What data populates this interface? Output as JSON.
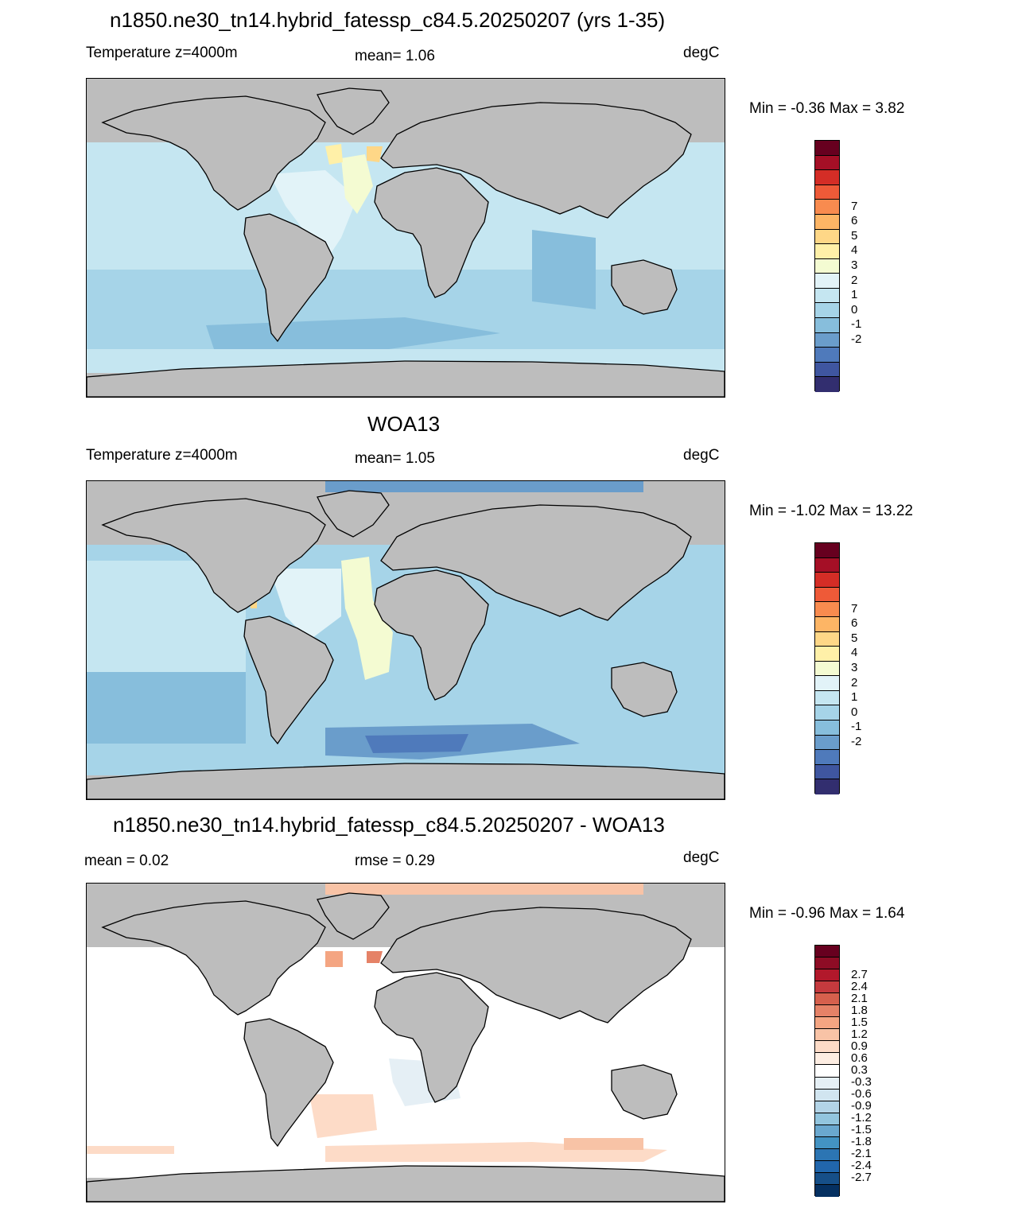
{
  "panels": [
    {
      "title": "n1850.ne30_tn14.hybrid_fatessp_c84.5.20250207 (yrs 1-35)",
      "left_label": "Temperature z=4000m",
      "center_label": "mean=   1.06",
      "units": "degC",
      "minmax": "Min =  -0.36 Max =   3.82",
      "colorbar": {
        "labels": [
          "7",
          "6",
          "5",
          "4",
          "3",
          "2",
          "1",
          "0",
          "-1",
          "-2"
        ],
        "colors": [
          "#67001f",
          "#a50f26",
          "#d42d26",
          "#ee5a38",
          "#f88b4f",
          "#fdb565",
          "#fed787",
          "#fff0a8",
          "#f4fbd2",
          "#e2f3f8",
          "#c5e6f1",
          "#a6d4e8",
          "#87bedc",
          "#6a9dcb",
          "#4f7abb",
          "#3f56a0",
          "#322e6f"
        ]
      },
      "field": "temp_model"
    },
    {
      "title": "WOA13",
      "left_label": "Temperature z=4000m",
      "center_label": "mean=   1.05",
      "units": "degC",
      "minmax": "Min =  -1.02 Max =  13.22",
      "colorbar": {
        "labels": [
          "7",
          "6",
          "5",
          "4",
          "3",
          "2",
          "1",
          "0",
          "-1",
          "-2"
        ],
        "colors": [
          "#67001f",
          "#a50f26",
          "#d42d26",
          "#ee5a38",
          "#f88b4f",
          "#fdb565",
          "#fed787",
          "#fff0a8",
          "#f4fbd2",
          "#e2f3f8",
          "#c5e6f1",
          "#a6d4e8",
          "#87bedc",
          "#6a9dcb",
          "#4f7abb",
          "#3f56a0",
          "#322e6f"
        ]
      },
      "field": "temp_obs"
    },
    {
      "title": "n1850.ne30_tn14.hybrid_fatessp_c84.5.20250207 - WOA13",
      "left_label": "mean =   0.02",
      "center_label": "rmse =   0.29",
      "units": "degC",
      "minmax": "Min =  -0.96 Max =   1.64",
      "colorbar": {
        "labels": [
          "2.7",
          "2.4",
          "2.1",
          "1.8",
          "1.5",
          "1.2",
          "0.9",
          "0.6",
          "0.3",
          "-0.3",
          "-0.6",
          "-0.9",
          "-1.2",
          "-1.5",
          "-1.8",
          "-2.1",
          "-2.4",
          "-2.7"
        ],
        "colors": [
          "#67001f",
          "#8e0c25",
          "#b2182b",
          "#c53a3e",
          "#d6604d",
          "#e58267",
          "#f4a582",
          "#f8c3a6",
          "#fddbc7",
          "#fdede2",
          "#ffffff",
          "#e5eff5",
          "#d1e5f0",
          "#b3d4e7",
          "#92c5de",
          "#6aa8cf",
          "#4393c3",
          "#2c75b3",
          "#2166ac",
          "#164f88",
          "#053061"
        ]
      },
      "field": "diff"
    }
  ],
  "colors": {
    "land": "#bdbdbd",
    "coast": "#000000"
  }
}
